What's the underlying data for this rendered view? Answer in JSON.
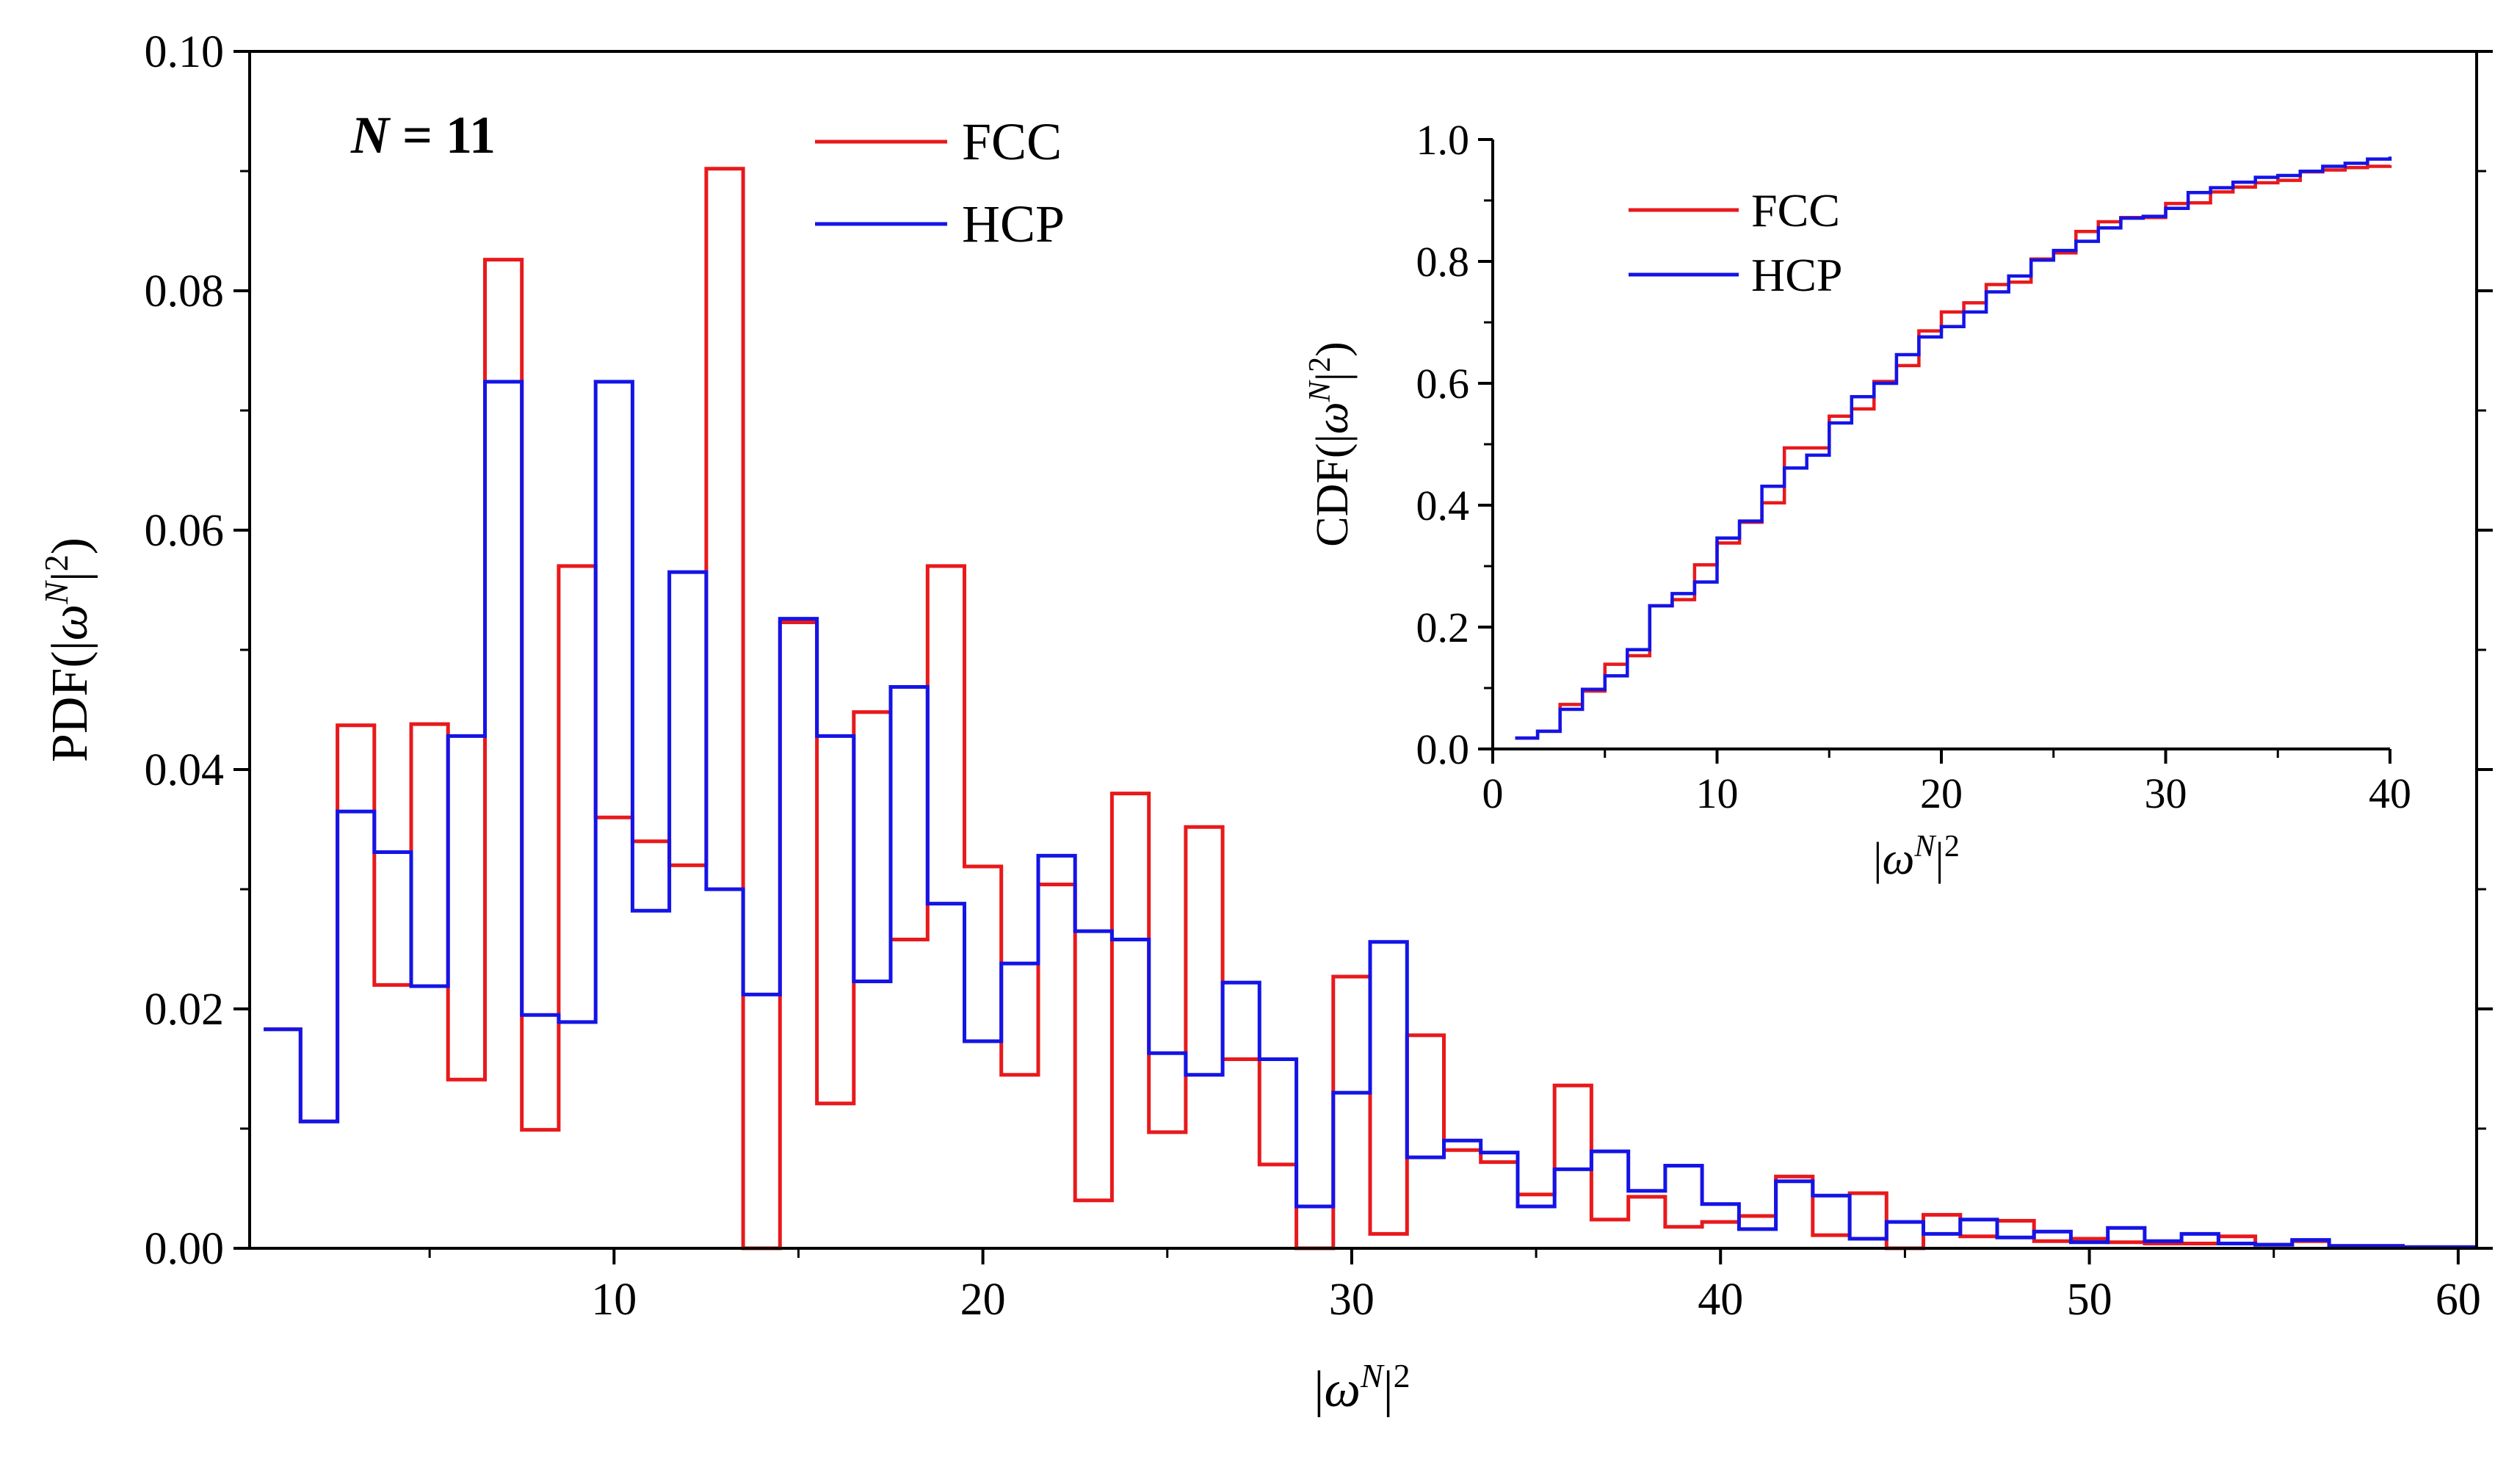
{
  "chart_data": [
    {
      "type": "step",
      "role": "main",
      "annotation": {
        "N": "N",
        "rest": " = 11"
      },
      "ylabel": {
        "pre": "PDF(|",
        "sym": "ω",
        "sup1": "N",
        "mid": "|",
        "sup2": "2",
        "post": ")"
      },
      "xlabel": {
        "pre": "|",
        "sym": "ω",
        "sup1": "N",
        "mid": "|",
        "sup2": "2"
      },
      "xlim": [
        0.12,
        60.5
      ],
      "ylim": [
        0,
        0.1
      ],
      "xticks": [
        10,
        20,
        30,
        40,
        50,
        60
      ],
      "xtick_labels": [
        "10",
        "20",
        "30",
        "40",
        "50",
        "60"
      ],
      "yticks": [
        0,
        0.02,
        0.04,
        0.06,
        0.08,
        0.1
      ],
      "ytick_labels": [
        "0.00",
        "0.02",
        "0.04",
        "0.06",
        "0.08",
        "0.10"
      ],
      "legend": [
        "FCC",
        "HCP"
      ],
      "bin_edges": [
        0.5,
        1.5,
        2.5,
        3.5,
        4.5,
        5.5,
        6.5,
        7.5,
        8.5,
        9.5,
        10.5,
        11.5,
        12.5,
        13.5,
        14.5,
        15.5,
        16.5,
        17.5,
        18.5,
        19.5,
        20.5,
        21.5,
        22.5,
        23.5,
        24.5,
        25.5,
        26.5,
        27.5,
        28.5,
        29.5,
        30.5,
        31.5,
        32.5,
        33.5,
        34.5,
        35.5,
        36.5,
        37.5,
        38.5,
        39.5,
        40.5,
        41.5,
        42.5,
        43.5,
        44.5,
        45.5,
        46.5,
        47.5,
        48.5,
        49.5,
        50.5,
        51.5,
        52.5,
        53.5,
        54.5,
        55.5,
        56.5,
        57.5,
        58.5,
        59.5,
        60.5
      ],
      "series": [
        {
          "name": "FCC",
          "color": "#e8191c",
          "values": [
            0.0183,
            0.0106,
            0.0437,
            0.022,
            0.0438,
            0.0141,
            0.0826,
            0.0099,
            0.057,
            0.036,
            0.034,
            0.032,
            0.0902,
            0.0,
            0.0523,
            0.0121,
            0.0448,
            0.0258,
            0.057,
            0.0319,
            0.0145,
            0.0304,
            0.004,
            0.038,
            0.0097,
            0.0352,
            0.0158,
            0.007,
            0.0,
            0.0227,
            0.0012,
            0.0178,
            0.0082,
            0.0072,
            0.0045,
            0.0136,
            0.0024,
            0.0043,
            0.0018,
            0.0022,
            0.0027,
            0.006,
            0.0011,
            0.0046,
            0.0,
            0.0028,
            0.001,
            0.0023,
            0.0006,
            0.0008,
            0.0005,
            0.0004,
            0.0004,
            0.001,
            0.0003,
            0.0006,
            0.0002,
            0.0002,
            0.0001,
            0.0001
          ]
        },
        {
          "name": "HCP",
          "color": "#1414e6",
          "values": [
            0.0183,
            0.0106,
            0.0365,
            0.0331,
            0.0219,
            0.0428,
            0.0724,
            0.0195,
            0.0189,
            0.0724,
            0.0282,
            0.0565,
            0.03,
            0.0212,
            0.0526,
            0.0428,
            0.0223,
            0.0469,
            0.0288,
            0.0173,
            0.0238,
            0.0328,
            0.0265,
            0.0258,
            0.0163,
            0.0145,
            0.0222,
            0.0158,
            0.0035,
            0.013,
            0.0256,
            0.0076,
            0.009,
            0.008,
            0.0035,
            0.0066,
            0.0081,
            0.0048,
            0.0069,
            0.0037,
            0.0016,
            0.0056,
            0.0044,
            0.0008,
            0.0022,
            0.0012,
            0.0024,
            0.0009,
            0.0014,
            0.0005,
            0.0017,
            0.0006,
            0.0012,
            0.0004,
            0.0003,
            0.0007,
            0.0002,
            0.0002,
            0.0001,
            0.0001
          ]
        }
      ]
    },
    {
      "type": "step",
      "role": "inset",
      "ylabel": {
        "pre": "CDF(|",
        "sym": "ω",
        "sup1": "N",
        "mid": "|",
        "sup2": "2",
        "post": ")"
      },
      "xlabel": {
        "pre": "|",
        "sym": "ω",
        "sup1": "N",
        "mid": "|",
        "sup2": "2"
      },
      "xlim": [
        0,
        40
      ],
      "ylim": [
        0,
        1.0
      ],
      "xticks": [
        0,
        10,
        20,
        30,
        40
      ],
      "xtick_labels": [
        "0",
        "10",
        "20",
        "30",
        "40"
      ],
      "yticks": [
        0,
        0.2,
        0.4,
        0.6,
        0.8,
        1.0
      ],
      "ytick_labels": [
        "0.0",
        "0.2",
        "0.4",
        "0.6",
        "0.8",
        "1.0"
      ],
      "legend": [
        "FCC",
        "HCP"
      ],
      "bin_edges": [
        1,
        2,
        3,
        4,
        5,
        6,
        7,
        8,
        9,
        10,
        11,
        12,
        13,
        14,
        15,
        16,
        17,
        18,
        19,
        20,
        21,
        22,
        23,
        24,
        25,
        26,
        27,
        28,
        29,
        30,
        31,
        32,
        33,
        34,
        35,
        36,
        37,
        38,
        39,
        40
      ],
      "series": [
        {
          "name": "FCC",
          "color": "#e8191c",
          "values": [
            0.018,
            0.029,
            0.073,
            0.095,
            0.139,
            0.153,
            0.235,
            0.245,
            0.302,
            0.338,
            0.372,
            0.404,
            0.494,
            0.494,
            0.546,
            0.558,
            0.603,
            0.629,
            0.686,
            0.717,
            0.732,
            0.762,
            0.766,
            0.804,
            0.814,
            0.849,
            0.865,
            0.872,
            0.872,
            0.895,
            0.896,
            0.914,
            0.922,
            0.929,
            0.933,
            0.947,
            0.95,
            0.954,
            0.956,
            0.958
          ]
        },
        {
          "name": "HCP",
          "color": "#1414e6",
          "values": [
            0.018,
            0.029,
            0.065,
            0.098,
            0.12,
            0.163,
            0.235,
            0.255,
            0.274,
            0.346,
            0.374,
            0.431,
            0.461,
            0.482,
            0.535,
            0.578,
            0.6,
            0.647,
            0.676,
            0.693,
            0.717,
            0.75,
            0.776,
            0.802,
            0.818,
            0.833,
            0.855,
            0.871,
            0.874,
            0.887,
            0.913,
            0.921,
            0.93,
            0.938,
            0.941,
            0.948,
            0.956,
            0.961,
            0.968,
            0.972
          ]
        }
      ]
    }
  ]
}
